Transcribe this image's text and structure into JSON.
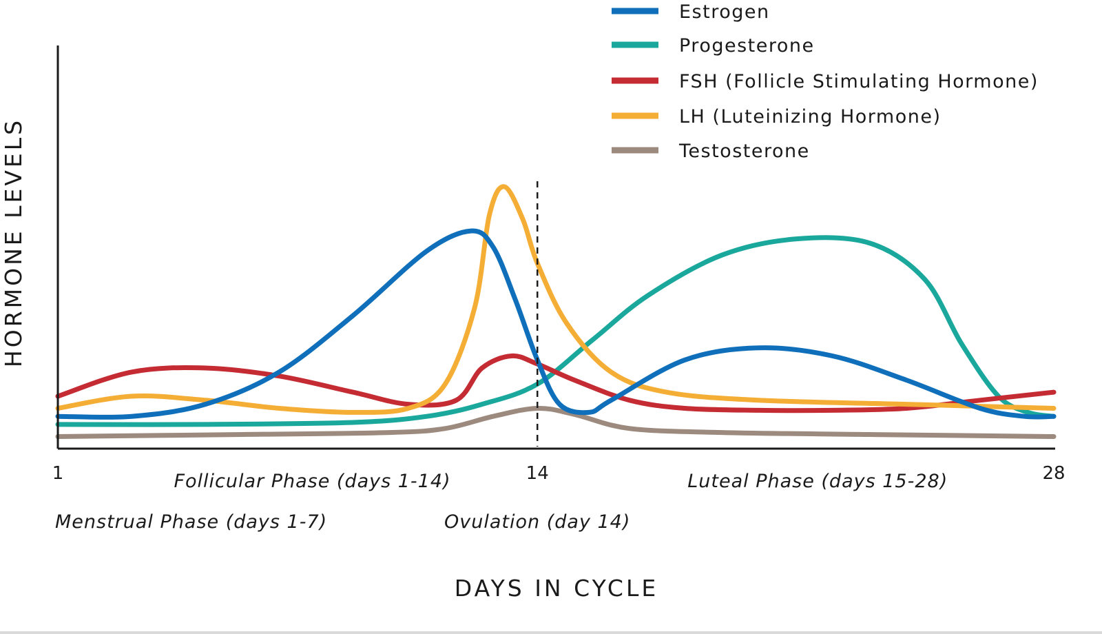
{
  "chart_data": {
    "type": "line",
    "title": "",
    "xlabel": "DAYS IN CYCLE",
    "ylabel": "HORMONE LEVELS",
    "xlim": [
      1,
      28
    ],
    "ylim": [
      0,
      10
    ],
    "grid": false,
    "legend_position": "top-right",
    "x_ticks": [
      "1",
      "14",
      "28"
    ],
    "x_tick_values": [
      1,
      14,
      28
    ],
    "ovulation_marker_day": 14,
    "phase_labels": [
      {
        "text": "Follicular Phase (days 1-14)",
        "day": 7.9,
        "row": 1
      },
      {
        "text": "Luteal Phase (days 15-28)",
        "day": 21.6,
        "row": 1
      },
      {
        "text": "Menstrual Phase (days 1-7)",
        "day": 1,
        "row": 2
      },
      {
        "text": "Ovulation (day 14)",
        "day": 14,
        "row": 2
      }
    ],
    "series": [
      {
        "name": "Estrogen",
        "color": "#0f6fba",
        "points": [
          [
            1,
            0.8
          ],
          [
            3,
            0.8
          ],
          [
            5,
            1.1
          ],
          [
            7,
            1.9
          ],
          [
            9,
            3.3
          ],
          [
            11,
            4.9
          ],
          [
            12.2,
            5.4
          ],
          [
            12.8,
            5.0
          ],
          [
            13.4,
            3.7
          ],
          [
            14,
            2.2
          ],
          [
            14.6,
            1.1
          ],
          [
            15.4,
            0.9
          ],
          [
            16,
            1.2
          ],
          [
            18,
            2.2
          ],
          [
            20,
            2.5
          ],
          [
            22,
            2.3
          ],
          [
            24,
            1.7
          ],
          [
            26,
            1.0
          ],
          [
            27.2,
            0.8
          ],
          [
            28,
            0.8
          ]
        ]
      },
      {
        "name": "Progesterone",
        "color": "#1aa89c",
        "points": [
          [
            1,
            0.6
          ],
          [
            5,
            0.6
          ],
          [
            9,
            0.65
          ],
          [
            11,
            0.8
          ],
          [
            12.5,
            1.1
          ],
          [
            14,
            1.6
          ],
          [
            15.5,
            2.7
          ],
          [
            17,
            3.8
          ],
          [
            19,
            4.8
          ],
          [
            21,
            5.2
          ],
          [
            23,
            5.1
          ],
          [
            24.5,
            4.2
          ],
          [
            25.5,
            2.6
          ],
          [
            26.5,
            1.3
          ],
          [
            27.3,
            0.9
          ],
          [
            28,
            0.8
          ]
        ]
      },
      {
        "name": "FSH (Follicle Stimulating Hormone)",
        "color": "#c42b33",
        "points": [
          [
            1,
            1.3
          ],
          [
            3,
            1.9
          ],
          [
            5,
            2.0
          ],
          [
            7,
            1.8
          ],
          [
            9,
            1.4
          ],
          [
            10.5,
            1.1
          ],
          [
            11.8,
            1.2
          ],
          [
            12.5,
            2.0
          ],
          [
            13.3,
            2.3
          ],
          [
            14,
            2.1
          ],
          [
            15,
            1.7
          ],
          [
            16.5,
            1.2
          ],
          [
            18,
            1.0
          ],
          [
            20,
            0.95
          ],
          [
            22,
            0.95
          ],
          [
            24,
            1.0
          ],
          [
            26,
            1.2
          ],
          [
            28,
            1.4
          ]
        ]
      },
      {
        "name": "LH (Luteinizing Hormone)",
        "color": "#f5ae35",
        "points": [
          [
            1,
            1.0
          ],
          [
            3,
            1.3
          ],
          [
            5,
            1.2
          ],
          [
            7,
            1.0
          ],
          [
            9,
            0.9
          ],
          [
            10.5,
            1.0
          ],
          [
            11.5,
            1.6
          ],
          [
            12.3,
            3.5
          ],
          [
            12.7,
            5.8
          ],
          [
            13.1,
            6.5
          ],
          [
            13.6,
            5.7
          ],
          [
            14,
            4.6
          ],
          [
            14.8,
            3.1
          ],
          [
            16,
            1.9
          ],
          [
            17.5,
            1.4
          ],
          [
            20,
            1.2
          ],
          [
            24,
            1.1
          ],
          [
            28,
            1.0
          ]
        ]
      },
      {
        "name": "Testosterone",
        "color": "#9c8a7e",
        "points": [
          [
            1,
            0.3
          ],
          [
            6,
            0.35
          ],
          [
            10,
            0.4
          ],
          [
            11.5,
            0.5
          ],
          [
            12.8,
            0.8
          ],
          [
            14,
            1.0
          ],
          [
            15,
            0.85
          ],
          [
            16.5,
            0.5
          ],
          [
            19,
            0.4
          ],
          [
            23,
            0.35
          ],
          [
            28,
            0.3
          ]
        ]
      }
    ]
  }
}
